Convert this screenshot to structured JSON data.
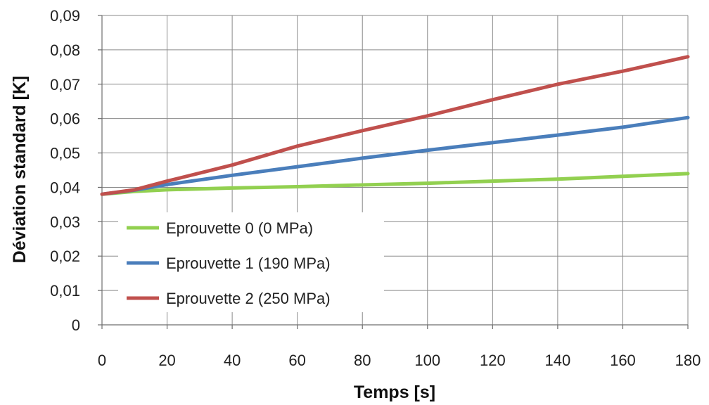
{
  "chart_data": {
    "type": "line",
    "xlabel": "Temps [s]",
    "ylabel": "Déviation  standard  [K]",
    "xlim": [
      0,
      180
    ],
    "ylim": [
      0,
      0.09
    ],
    "x_ticks": [
      0,
      20,
      40,
      60,
      80,
      100,
      120,
      140,
      160,
      180
    ],
    "x_tick_labels": [
      "0",
      "20",
      "40",
      "60",
      "80",
      "100",
      "120",
      "140",
      "160",
      "180"
    ],
    "y_ticks": [
      0,
      0.01,
      0.02,
      0.03,
      0.04,
      0.05,
      0.06,
      0.07,
      0.08,
      0.09
    ],
    "y_tick_labels": [
      "0",
      "0,01",
      "0,02",
      "0,03",
      "0,04",
      "0,05",
      "0,06",
      "0,07",
      "0,08",
      "0,09"
    ],
    "grid": true,
    "legend_position": "bottom-left",
    "series": [
      {
        "name": "Eprouvette 0 (0 MPa)",
        "color": "#92d050",
        "x": [
          0,
          10,
          20,
          40,
          60,
          80,
          100,
          120,
          140,
          160,
          180
        ],
        "y": [
          0.038,
          0.0388,
          0.0393,
          0.0398,
          0.0402,
          0.0407,
          0.0412,
          0.0418,
          0.0424,
          0.0432,
          0.044
        ]
      },
      {
        "name": "Eprouvette 1 (190 MPa)",
        "color": "#4a7ebb",
        "x": [
          0,
          10,
          20,
          40,
          60,
          80,
          100,
          120,
          140,
          160,
          180
        ],
        "y": [
          0.038,
          0.0392,
          0.0408,
          0.0435,
          0.046,
          0.0485,
          0.0508,
          0.053,
          0.0552,
          0.0575,
          0.0603
        ]
      },
      {
        "name": "Eprouvette 2 (250 MPa)",
        "color": "#c0504d",
        "x": [
          0,
          10,
          20,
          40,
          60,
          80,
          100,
          120,
          140,
          160,
          180
        ],
        "y": [
          0.038,
          0.0393,
          0.0418,
          0.0465,
          0.052,
          0.0565,
          0.0608,
          0.0655,
          0.07,
          0.0738,
          0.078
        ]
      }
    ]
  }
}
